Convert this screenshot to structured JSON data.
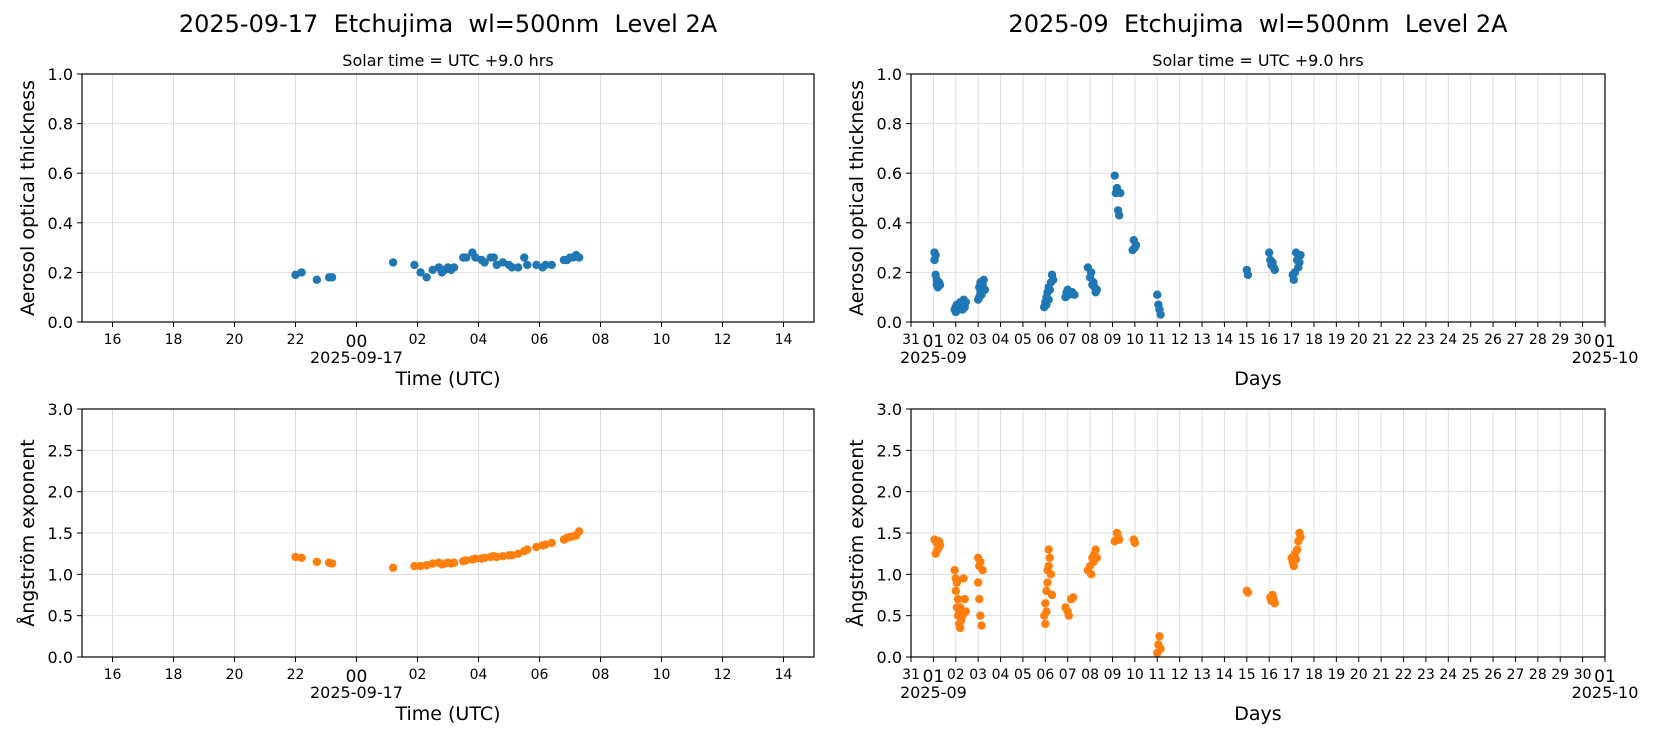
{
  "figure": {
    "left_title": "2025-09-17  Etchujima  wl=500nm  Level 2A",
    "right_title": "2025-09  Etchujima  wl=500nm  Level 2A"
  },
  "colors": {
    "aod": "#1f77b4",
    "angstrom": "#ff7f0e",
    "grid": "#dddddd"
  },
  "chart_data": [
    {
      "type": "scatter",
      "panel": "daily-aod",
      "subtitle": "Solar time = UTC +9.0 hrs",
      "xlabel": "Time (UTC)",
      "ylabel": "Aerosol optical thickness",
      "ylim": [
        0,
        1.0
      ],
      "yticks": [
        "0.0",
        "0.2",
        "0.4",
        "0.6",
        "0.8",
        "1.0"
      ],
      "xlim_hours": [
        -9.0,
        15.0
      ],
      "xticks": [
        "16",
        "18",
        "20",
        "22",
        "00",
        "02",
        "04",
        "06",
        "08",
        "10",
        "12",
        "14"
      ],
      "date_label": "2025-09-17",
      "grid": true,
      "x_hours": [
        -2.0,
        -1.8,
        -1.3,
        -0.9,
        -0.8,
        1.2,
        1.9,
        2.1,
        2.3,
        2.5,
        2.7,
        2.8,
        2.9,
        3.0,
        3.1,
        3.2,
        3.5,
        3.6,
        3.8,
        3.9,
        4.1,
        4.2,
        4.4,
        4.5,
        4.6,
        4.8,
        5.0,
        5.1,
        5.3,
        5.5,
        5.6,
        5.9,
        6.1,
        6.2,
        6.4,
        6.8,
        6.9,
        7.0,
        7.1,
        7.2,
        7.3
      ],
      "values": [
        0.19,
        0.2,
        0.17,
        0.18,
        0.18,
        0.24,
        0.23,
        0.2,
        0.18,
        0.21,
        0.22,
        0.2,
        0.21,
        0.22,
        0.21,
        0.22,
        0.26,
        0.26,
        0.28,
        0.26,
        0.25,
        0.24,
        0.26,
        0.26,
        0.23,
        0.24,
        0.23,
        0.22,
        0.22,
        0.26,
        0.23,
        0.23,
        0.22,
        0.23,
        0.23,
        0.25,
        0.25,
        0.26,
        0.26,
        0.27,
        0.26
      ]
    },
    {
      "type": "scatter",
      "panel": "daily-angstrom",
      "xlabel": "Time (UTC)",
      "ylabel": "Ångström exponent",
      "ylim": [
        0,
        3.0
      ],
      "yticks": [
        "0.0",
        "0.5",
        "1.0",
        "1.5",
        "2.0",
        "2.5",
        "3.0"
      ],
      "xlim_hours": [
        -9.0,
        15.0
      ],
      "xticks": [
        "16",
        "18",
        "20",
        "22",
        "00",
        "02",
        "04",
        "06",
        "08",
        "10",
        "12",
        "14"
      ],
      "date_label": "2025-09-17",
      "grid": true,
      "x_hours": [
        -2.0,
        -1.8,
        -1.3,
        -0.9,
        -0.8,
        1.2,
        1.9,
        2.1,
        2.3,
        2.5,
        2.7,
        2.8,
        2.9,
        3.0,
        3.1,
        3.2,
        3.5,
        3.6,
        3.8,
        3.9,
        4.1,
        4.2,
        4.4,
        4.5,
        4.6,
        4.8,
        5.0,
        5.1,
        5.3,
        5.5,
        5.6,
        5.9,
        6.1,
        6.2,
        6.4,
        6.8,
        6.9,
        7.0,
        7.1,
        7.2,
        7.3
      ],
      "values": [
        1.21,
        1.2,
        1.15,
        1.14,
        1.13,
        1.08,
        1.1,
        1.1,
        1.11,
        1.13,
        1.14,
        1.12,
        1.13,
        1.14,
        1.13,
        1.14,
        1.16,
        1.17,
        1.18,
        1.19,
        1.19,
        1.2,
        1.21,
        1.22,
        1.21,
        1.22,
        1.23,
        1.23,
        1.25,
        1.28,
        1.3,
        1.33,
        1.35,
        1.36,
        1.38,
        1.42,
        1.44,
        1.45,
        1.46,
        1.47,
        1.52
      ]
    },
    {
      "type": "scatter",
      "panel": "monthly-aod",
      "subtitle": "Solar time = UTC +9.0 hrs",
      "xlabel": "Days",
      "ylabel": "Aerosol optical thickness",
      "ylim": [
        0,
        1.0
      ],
      "yticks": [
        "0.0",
        "0.2",
        "0.4",
        "0.6",
        "0.8",
        "1.0"
      ],
      "xlim_days": [
        0.0,
        31.0
      ],
      "xticks": [
        "31",
        "01",
        "02",
        "03",
        "04",
        "05",
        "06",
        "07",
        "08",
        "09",
        "10",
        "11",
        "12",
        "13",
        "14",
        "15",
        "16",
        "17",
        "18",
        "19",
        "20",
        "21",
        "22",
        "23",
        "24",
        "25",
        "26",
        "27",
        "28",
        "29",
        "30",
        "01"
      ],
      "start_label": "2025-09",
      "end_label": "2025-10",
      "grid": true,
      "x_days": [
        1.05,
        1.05,
        1.1,
        1.1,
        1.15,
        1.15,
        1.2,
        1.2,
        1.25,
        1.3,
        1.95,
        2.0,
        2.0,
        2.05,
        2.1,
        2.15,
        2.2,
        2.25,
        2.3,
        2.35,
        2.4,
        2.45,
        3.0,
        3.05,
        3.05,
        3.1,
        3.1,
        3.15,
        3.2,
        3.25,
        3.3,
        5.95,
        6.0,
        6.05,
        6.05,
        6.1,
        6.15,
        6.15,
        6.2,
        6.25,
        6.3,
        6.35,
        6.9,
        6.95,
        7.0,
        7.05,
        7.1,
        7.2,
        7.3,
        7.9,
        8.0,
        8.05,
        8.1,
        8.15,
        8.2,
        8.25,
        8.3,
        9.1,
        9.15,
        9.2,
        9.25,
        9.3,
        9.35,
        9.9,
        9.95,
        10.0,
        10.05,
        11.0,
        11.05,
        11.1,
        11.15,
        15.0,
        15.05,
        16.0,
        16.05,
        16.1,
        16.15,
        16.2,
        16.25,
        17.05,
        17.1,
        17.15,
        17.2,
        17.25,
        17.3,
        17.35,
        17.4
      ],
      "values": [
        0.28,
        0.25,
        0.27,
        0.19,
        0.17,
        0.15,
        0.16,
        0.14,
        0.16,
        0.15,
        0.05,
        0.06,
        0.04,
        0.07,
        0.05,
        0.06,
        0.08,
        0.07,
        0.05,
        0.09,
        0.06,
        0.08,
        0.09,
        0.1,
        0.14,
        0.12,
        0.16,
        0.11,
        0.15,
        0.17,
        0.13,
        0.06,
        0.08,
        0.07,
        0.1,
        0.12,
        0.09,
        0.14,
        0.13,
        0.16,
        0.19,
        0.17,
        0.1,
        0.12,
        0.13,
        0.11,
        0.12,
        0.12,
        0.11,
        0.22,
        0.18,
        0.2,
        0.15,
        0.16,
        0.14,
        0.12,
        0.13,
        0.59,
        0.52,
        0.54,
        0.45,
        0.43,
        0.52,
        0.29,
        0.33,
        0.3,
        0.31,
        0.11,
        0.07,
        0.05,
        0.03,
        0.21,
        0.19,
        0.28,
        0.25,
        0.23,
        0.24,
        0.22,
        0.21,
        0.19,
        0.17,
        0.2,
        0.28,
        0.25,
        0.22,
        0.24,
        0.27
      ]
    },
    {
      "type": "scatter",
      "panel": "monthly-angstrom",
      "xlabel": "Days",
      "ylabel": "Ångström exponent",
      "ylim": [
        0,
        3.0
      ],
      "yticks": [
        "0.0",
        "0.5",
        "1.0",
        "1.5",
        "2.0",
        "2.5",
        "3.0"
      ],
      "xlim_days": [
        0.0,
        31.0
      ],
      "xticks": [
        "31",
        "01",
        "02",
        "03",
        "04",
        "05",
        "06",
        "07",
        "08",
        "09",
        "10",
        "11",
        "12",
        "13",
        "14",
        "15",
        "16",
        "17",
        "18",
        "19",
        "20",
        "21",
        "22",
        "23",
        "24",
        "25",
        "26",
        "27",
        "28",
        "29",
        "30",
        "01"
      ],
      "start_label": "2025-09",
      "end_label": "2025-10",
      "grid": true,
      "x_days": [
        1.05,
        1.1,
        1.15,
        1.2,
        1.25,
        1.3,
        1.95,
        2.0,
        2.0,
        2.05,
        2.05,
        2.1,
        2.1,
        2.15,
        2.15,
        2.2,
        2.2,
        2.25,
        2.3,
        2.35,
        2.4,
        2.45,
        3.0,
        3.0,
        3.05,
        3.05,
        3.1,
        3.1,
        3.15,
        3.2,
        5.95,
        6.0,
        6.0,
        6.05,
        6.05,
        6.1,
        6.1,
        6.15,
        6.15,
        6.2,
        6.25,
        6.3,
        6.9,
        7.0,
        7.05,
        7.15,
        7.25,
        7.9,
        8.0,
        8.05,
        8.1,
        8.15,
        8.2,
        8.25,
        8.3,
        9.1,
        9.2,
        9.25,
        9.3,
        9.95,
        10.0,
        11.0,
        11.05,
        11.1,
        11.15,
        15.0,
        15.05,
        16.05,
        16.1,
        16.15,
        16.2,
        16.25,
        17.0,
        17.05,
        17.1,
        17.15,
        17.2,
        17.25,
        17.3,
        17.35,
        17.4
      ],
      "values": [
        1.42,
        1.25,
        1.38,
        1.3,
        1.4,
        1.35,
        1.05,
        0.95,
        0.8,
        0.6,
        0.9,
        0.5,
        0.7,
        0.4,
        0.55,
        0.35,
        0.6,
        0.45,
        0.5,
        0.95,
        0.7,
        0.55,
        1.2,
        0.9,
        0.7,
        1.1,
        0.5,
        1.15,
        0.38,
        1.05,
        0.5,
        0.4,
        0.65,
        0.55,
        0.8,
        0.9,
        1.05,
        1.3,
        1.1,
        1.2,
        1.0,
        0.75,
        0.6,
        0.55,
        0.5,
        0.7,
        0.72,
        1.05,
        1.1,
        1.0,
        1.2,
        1.15,
        1.25,
        1.3,
        1.2,
        1.4,
        1.5,
        1.45,
        1.42,
        1.42,
        1.38,
        0.05,
        0.15,
        0.25,
        0.1,
        0.8,
        0.78,
        0.72,
        0.68,
        0.75,
        0.7,
        0.65,
        1.2,
        1.15,
        1.1,
        1.25,
        1.18,
        1.3,
        1.4,
        1.5,
        1.45
      ]
    }
  ]
}
